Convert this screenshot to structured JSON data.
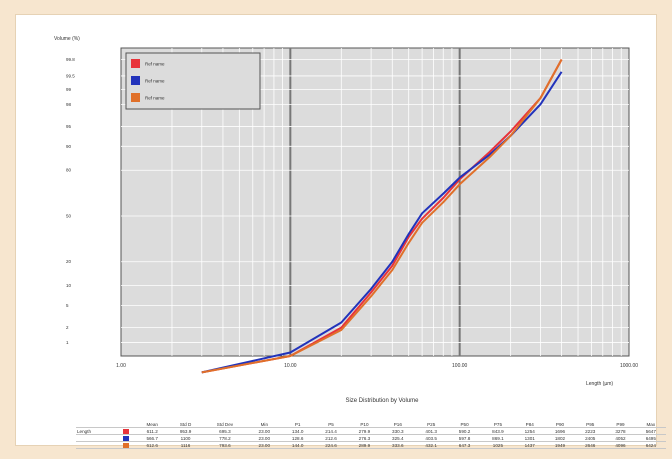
{
  "chart_data": {
    "type": "line",
    "title": "Size Distribution by Volume",
    "xlabel": "Length (µm)",
    "ylabel": "Volume (%)",
    "x_scale": "log",
    "y_scale": "probability",
    "xlim": [
      1,
      1000
    ],
    "ylim": [
      1,
      99.9
    ],
    "x_ticks": [
      "1.00",
      "10.00",
      "100.00",
      "1000.00"
    ],
    "y_ticks": [
      {
        "value": 1,
        "label": "1"
      },
      {
        "value": 2,
        "label": "2"
      },
      {
        "value": 5,
        "label": "5"
      },
      {
        "value": 10,
        "label": "10"
      },
      {
        "value": 20,
        "label": "20"
      },
      {
        "value": 50,
        "label": "50"
      },
      {
        "value": 80,
        "label": "80"
      },
      {
        "value": 90,
        "label": "90"
      },
      {
        "value": 95,
        "label": "95"
      },
      {
        "value": 98,
        "label": "98"
      },
      {
        "value": 99,
        "label": "99"
      },
      {
        "value": 99.5,
        "label": "99.5"
      },
      {
        "value": 99.8,
        "label": "99.8"
      }
    ],
    "grid": true,
    "legend_position": "top-left",
    "series": [
      {
        "name": "Ref name",
        "color": "#e8333a",
        "x": [
          3,
          10,
          20,
          30,
          40,
          50,
          60,
          80,
          100,
          150,
          200,
          300,
          400
        ],
        "y": [
          0.2,
          0.5,
          2,
          8,
          18,
          35,
          48,
          63,
          75,
          88,
          94,
          98.5,
          99.8
        ]
      },
      {
        "name": "Ref name",
        "color": "#2233bb",
        "x": [
          3,
          10,
          20,
          30,
          40,
          50,
          60,
          80,
          100,
          150,
          200,
          300,
          400
        ],
        "y": [
          0.2,
          0.6,
          2.5,
          9,
          20,
          37,
          52,
          66,
          76,
          87,
          93,
          98,
          99.6
        ]
      },
      {
        "name": "Ref name",
        "color": "#e0702a",
        "x": [
          3,
          10,
          20,
          30,
          40,
          50,
          60,
          80,
          100,
          150,
          200,
          300,
          400
        ],
        "y": [
          0.2,
          0.5,
          1.8,
          7,
          16,
          31,
          45,
          60,
          72,
          86,
          93,
          98.5,
          99.8
        ]
      }
    ]
  },
  "stats_table": {
    "headers": [
      "",
      "",
      "Mean",
      "Std D",
      "Std Dev",
      "Min",
      "P1",
      "P5",
      "P10",
      "P16",
      "P25",
      "P50",
      "P75",
      "P84",
      "P90",
      "P95",
      "P99",
      "Max"
    ],
    "rows": [
      {
        "label": "Length",
        "color": "#e8333a",
        "values": [
          "611.2",
          "953.9",
          "695.3",
          "23.00",
          "134.0",
          "214.4",
          "279.9",
          "330.3",
          "401.3",
          "590.2",
          "843.9",
          "1254",
          "1696",
          "2223",
          "3278",
          "5647"
        ]
      },
      {
        "label": "",
        "color": "#2233bb",
        "values": [
          "566.7",
          "1100",
          "778.2",
          "23.00",
          "128.6",
          "212.6",
          "276.3",
          "325.4",
          "403.5",
          "597.8",
          "869.1",
          "1301",
          "1802",
          "2405",
          "4052",
          "6495"
        ]
      },
      {
        "label": "",
        "color": "#e0702a",
        "values": [
          "612.6",
          "1116",
          "793.6",
          "23.00",
          "144.0",
          "224.6",
          "289.9",
          "333.6",
          "432.1",
          "647.3",
          "1025",
          "1437",
          "1949",
          "2646",
          "4096",
          "6424"
        ]
      }
    ]
  }
}
